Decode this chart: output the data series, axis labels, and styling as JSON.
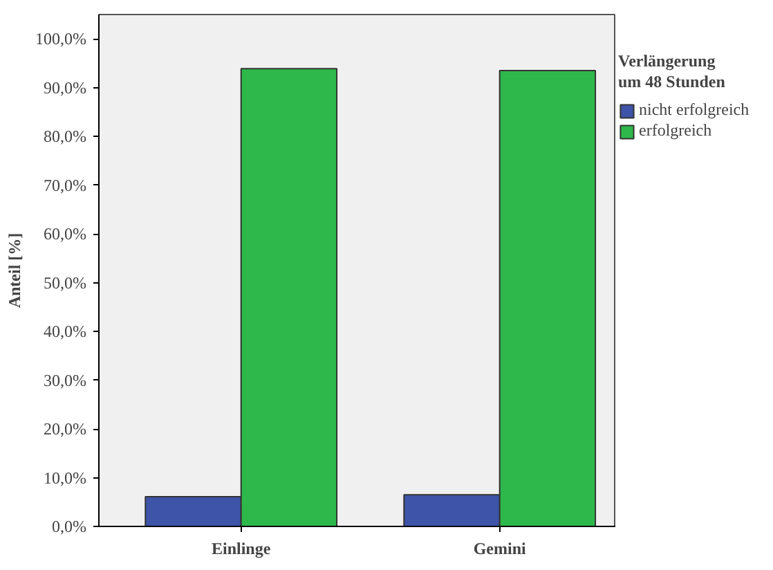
{
  "chart_data": {
    "type": "bar",
    "ylabel": "Anteil [%]",
    "legend_title": "Verlängerung\num 48 Stunden",
    "categories": [
      "Einlinge",
      "Gemini"
    ],
    "series": [
      {
        "name": "nicht erfolgreich",
        "color": "#3e54a8",
        "values": [
          6.1,
          6.5
        ]
      },
      {
        "name": "erfolgreich",
        "color": "#2eb84b",
        "values": [
          93.9,
          93.5
        ]
      }
    ],
    "ylim": [
      0,
      105
    ],
    "yticks": [
      {
        "value": 0,
        "label": "0,0%"
      },
      {
        "value": 10,
        "label": "10,0%"
      },
      {
        "value": 20,
        "label": "20,0%"
      },
      {
        "value": 30,
        "label": "30,0%"
      },
      {
        "value": 40,
        "label": "40,0%"
      },
      {
        "value": 50,
        "label": "50,0%"
      },
      {
        "value": 60,
        "label": "60,0%"
      },
      {
        "value": 70,
        "label": "70,0%"
      },
      {
        "value": 80,
        "label": "80,0%"
      },
      {
        "value": 90,
        "label": "90,0%"
      },
      {
        "value": 100,
        "label": "100,0%"
      }
    ],
    "legend": "right"
  }
}
